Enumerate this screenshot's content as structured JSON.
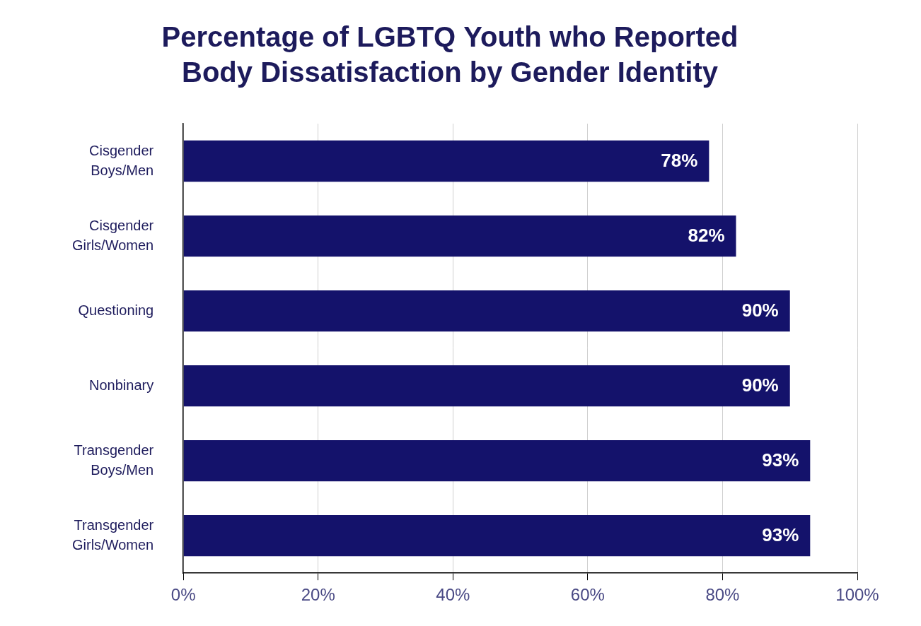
{
  "chart_data": {
    "type": "bar",
    "orientation": "horizontal",
    "title": [
      "Percentage of LGBTQ Youth who Reported",
      "Body Dissatisfaction by Gender Identity"
    ],
    "categories": [
      "Cisgender Boys/Men",
      "Cisgender Girls/Women",
      "Questioning",
      "Nonbinary",
      "Transgender Boys/Men",
      "Transgender Girls/Women"
    ],
    "values": [
      78,
      82,
      90,
      90,
      93,
      93
    ],
    "value_labels": [
      "78%",
      "82%",
      "90%",
      "90%",
      "93%",
      "93%"
    ],
    "color": "#14126b",
    "xlim": [
      0,
      100
    ],
    "xticks": [
      {
        "value": 0,
        "label": "0%"
      },
      {
        "value": 20,
        "label": "20%"
      },
      {
        "value": 40,
        "label": "40%"
      },
      {
        "value": 60,
        "label": "60%"
      },
      {
        "value": 80,
        "label": "80%"
      },
      {
        "value": 100,
        "label": "100%"
      }
    ],
    "grid": true,
    "data_labels": true
  }
}
